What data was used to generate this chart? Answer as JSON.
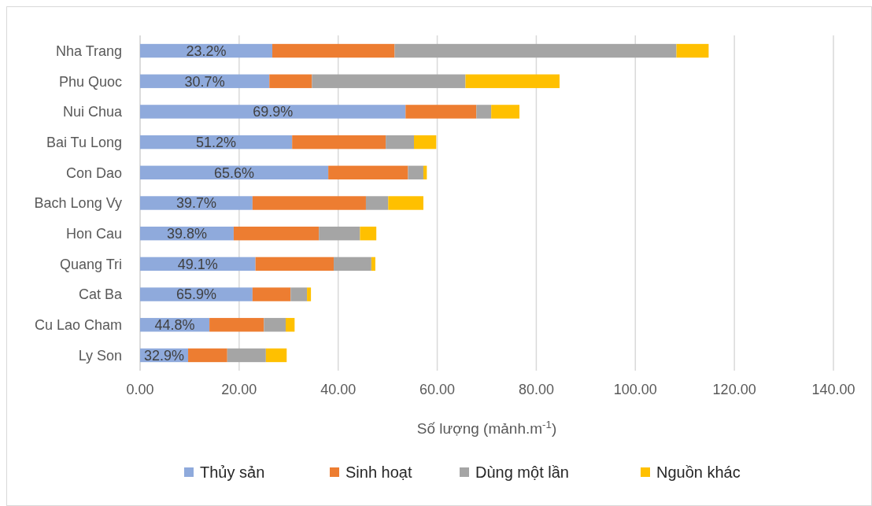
{
  "chart_data": {
    "type": "bar",
    "orientation": "horizontal",
    "stacked": true,
    "xlabel": "Số lượng (mảnh.m$^{-1}$)",
    "categories": [
      "Nha Trang",
      "Phu Quoc",
      "Nui Chua",
      "Bai Tu Long",
      "Con Dao",
      "Bach Long Vy",
      "Hon Cau",
      "Quang Tri",
      "Cat Ba",
      "Cu Lao Cham",
      "Ly Son"
    ],
    "series": [
      {
        "name": "Thủy sản",
        "color": "#8faadc",
        "values": [
          26.7,
          26.1,
          53.6,
          30.7,
          38.0,
          22.7,
          18.9,
          23.3,
          22.7,
          14.0,
          9.7
        ]
      },
      {
        "name": "Sinh hoạt",
        "color": "#ed7d31",
        "values": [
          24.7,
          8.6,
          14.3,
          18.9,
          16.1,
          22.9,
          17.2,
          15.8,
          7.7,
          11.0,
          7.9
        ]
      },
      {
        "name": "Dùng một lần",
        "color": "#a5a5a5",
        "values": [
          56.9,
          31.0,
          3.0,
          5.7,
          3.1,
          4.5,
          8.3,
          7.6,
          3.3,
          4.4,
          7.8
        ]
      },
      {
        "name": "Nguồn khác",
        "color": "#ffc000",
        "values": [
          6.5,
          19.0,
          5.7,
          4.5,
          0.7,
          7.1,
          3.3,
          0.8,
          0.8,
          1.8,
          4.2
        ]
      }
    ],
    "xlim": [
      0,
      140
    ],
    "xticks": [
      {
        "value": 0,
        "label": "0.00"
      },
      {
        "value": 20,
        "label": "20.00"
      },
      {
        "value": 40,
        "label": "40.00"
      },
      {
        "value": 60,
        "label": "60.00"
      },
      {
        "value": 80,
        "label": "80.00"
      },
      {
        "value": 100,
        "label": "100.00"
      },
      {
        "value": 120,
        "label": "120.00"
      },
      {
        "value": 140,
        "label": "140.00"
      }
    ],
    "grid": "x",
    "legend": "bottom",
    "annotations": [
      "23.2%",
      "30.7%",
      "69.9%",
      "51.2%",
      "65.6%",
      "39.7%",
      "39.8%",
      "49.1%",
      "65.9%",
      "44.8%",
      "32.9%"
    ]
  }
}
